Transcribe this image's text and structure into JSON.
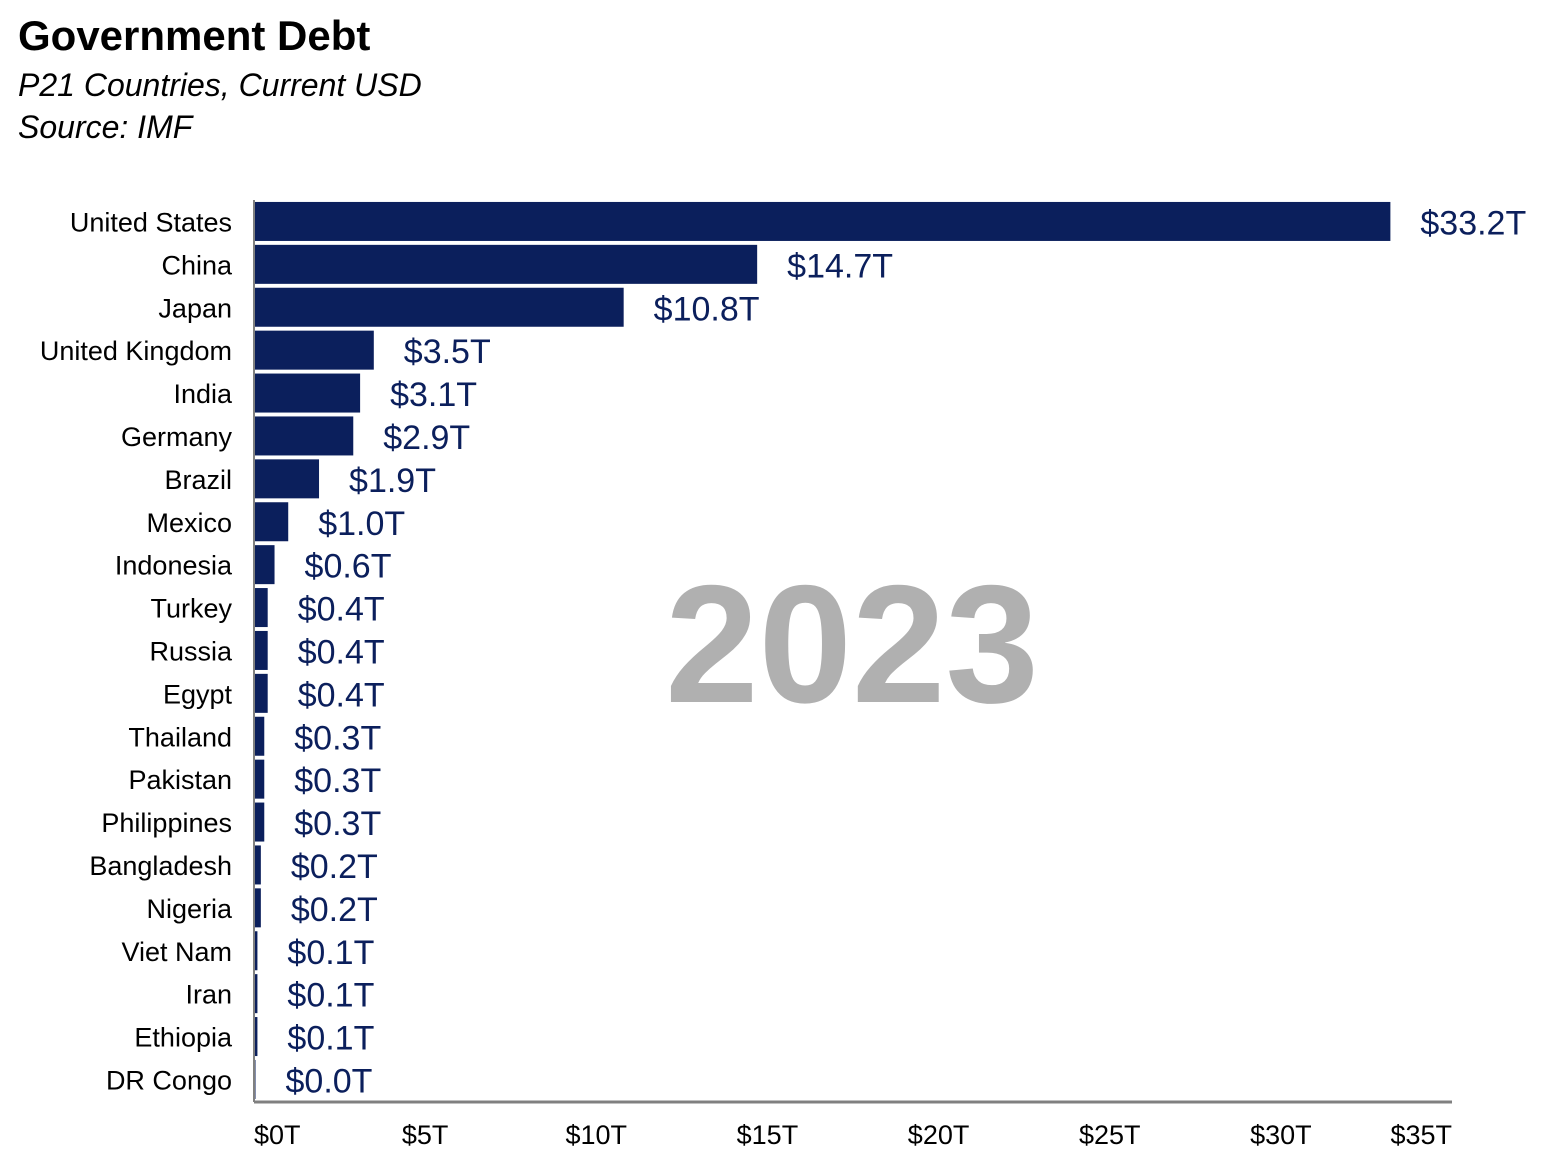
{
  "chart_data": {
    "type": "bar",
    "orientation": "horizontal",
    "title": "Government Debt",
    "subtitle": "P21 Countries, Current USD",
    "source": "Source: IMF",
    "year": "2023",
    "categories": [
      "United States",
      "China",
      "Japan",
      "United Kingdom",
      "India",
      "Germany",
      "Brazil",
      "Mexico",
      "Indonesia",
      "Turkey",
      "Russia",
      "Egypt",
      "Thailand",
      "Pakistan",
      "Philippines",
      "Bangladesh",
      "Nigeria",
      "Viet Nam",
      "Iran",
      "Ethiopia",
      "DR Congo"
    ],
    "values": [
      33.2,
      14.7,
      10.8,
      3.5,
      3.1,
      2.9,
      1.9,
      1.0,
      0.6,
      0.4,
      0.4,
      0.4,
      0.3,
      0.3,
      0.3,
      0.2,
      0.2,
      0.1,
      0.1,
      0.1,
      0.0
    ],
    "value_labels": [
      "$33.2T",
      "$14.7T",
      "$10.8T",
      "$3.5T",
      "$3.1T",
      "$2.9T",
      "$1.9T",
      "$1.0T",
      "$0.6T",
      "$0.4T",
      "$0.4T",
      "$0.4T",
      "$0.3T",
      "$0.3T",
      "$0.3T",
      "$0.2T",
      "$0.2T",
      "$0.1T",
      "$0.1T",
      "$0.1T",
      "$0.0T"
    ],
    "xlim": [
      0,
      35
    ],
    "xticks": [
      0,
      5,
      10,
      15,
      20,
      25,
      30,
      35
    ],
    "xtick_labels": [
      "$0T",
      "$5T",
      "$10T",
      "$15T",
      "$20T",
      "$25T",
      "$30T",
      "$35T"
    ],
    "xlabel": "",
    "ylabel": "",
    "grid": false,
    "legend": false,
    "bar_color": "#0b1f5c",
    "label_color": "#0b1f5c",
    "year_color": "#b0b0b0",
    "axis_color": "#808080"
  }
}
